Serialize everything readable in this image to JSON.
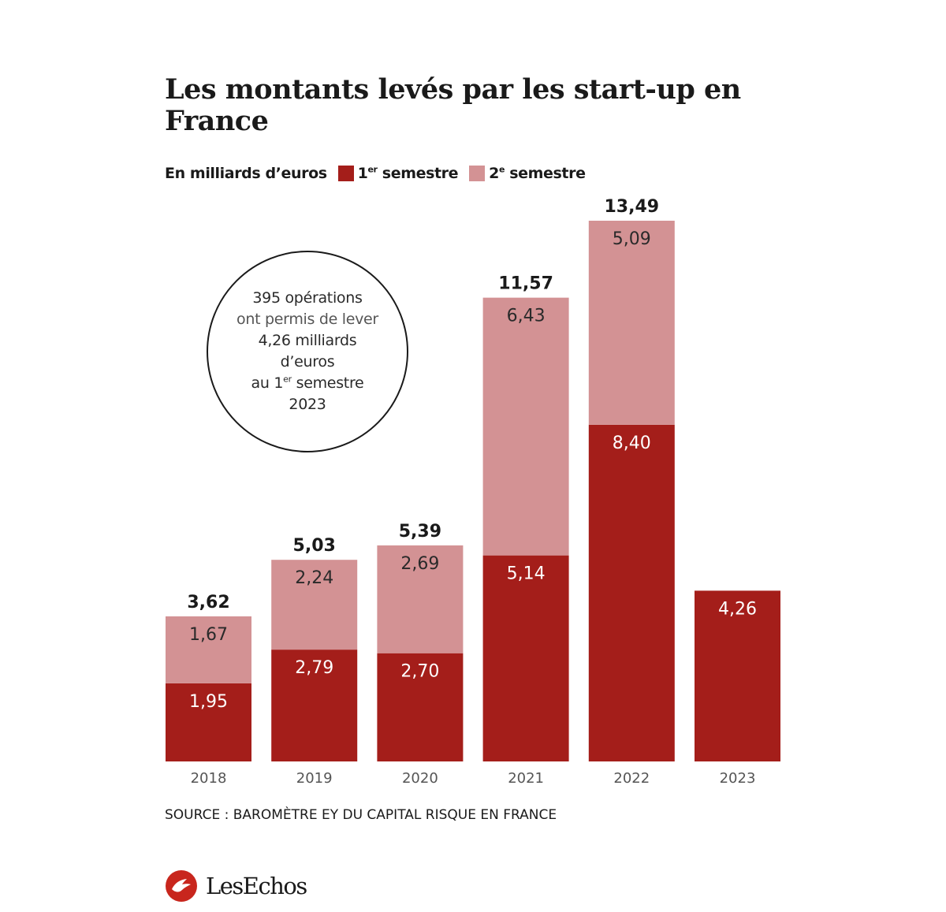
{
  "chart_data": {
    "type": "bar",
    "stacked": true,
    "title": "Les montants levés par les start-up en France",
    "unit_label": "En milliards d’euros",
    "categories": [
      "2018",
      "2019",
      "2020",
      "2021",
      "2022",
      "2023"
    ],
    "series": [
      {
        "name": "1er semestre",
        "color": "#a41e1a",
        "values": [
          1.95,
          2.79,
          2.7,
          5.14,
          8.4,
          4.26
        ]
      },
      {
        "name": "2e semestre",
        "color": "#d39294",
        "values": [
          1.67,
          2.24,
          2.69,
          6.43,
          5.09,
          null
        ]
      }
    ],
    "value_labels": [
      [
        "1,95",
        "2,79",
        "2,70",
        "5,14",
        "8,40",
        "4,26"
      ],
      [
        "1,67",
        "2,24",
        "2,69",
        "6,43",
        "5,09",
        ""
      ]
    ],
    "totals": [
      3.62,
      5.03,
      5.39,
      11.57,
      13.49,
      null
    ],
    "total_labels": [
      "3,62",
      "5,03",
      "5,39",
      "11,57",
      "13,49",
      ""
    ],
    "ylim": [
      0,
      13.49
    ],
    "grid": false,
    "legend_position": "top-left"
  },
  "legend": {
    "unit": "En milliards d’euros",
    "s1_main": "1",
    "s1_sup": "er",
    "s1_tail": " semestre",
    "s2_main": "2",
    "s2_sup": "e",
    "s2_tail": " semestre",
    "s1_color": "#a41e1a",
    "s2_color": "#d39294"
  },
  "callout": {
    "line1": "395 opérations",
    "line2": "ont permis de lever",
    "line3": "4,26 milliards",
    "line4": "d’euros",
    "line5_pre": "au 1",
    "line5_sup": "er",
    "line5_post": " semestre",
    "line6": "2023"
  },
  "source": "SOURCE : BAROMÈTRE EY DU CAPITAL RISQUE EN FRANCE",
  "brand": {
    "name": "LesEchos",
    "icon": "les-echos-logo-icon",
    "color": "#c8261d"
  }
}
